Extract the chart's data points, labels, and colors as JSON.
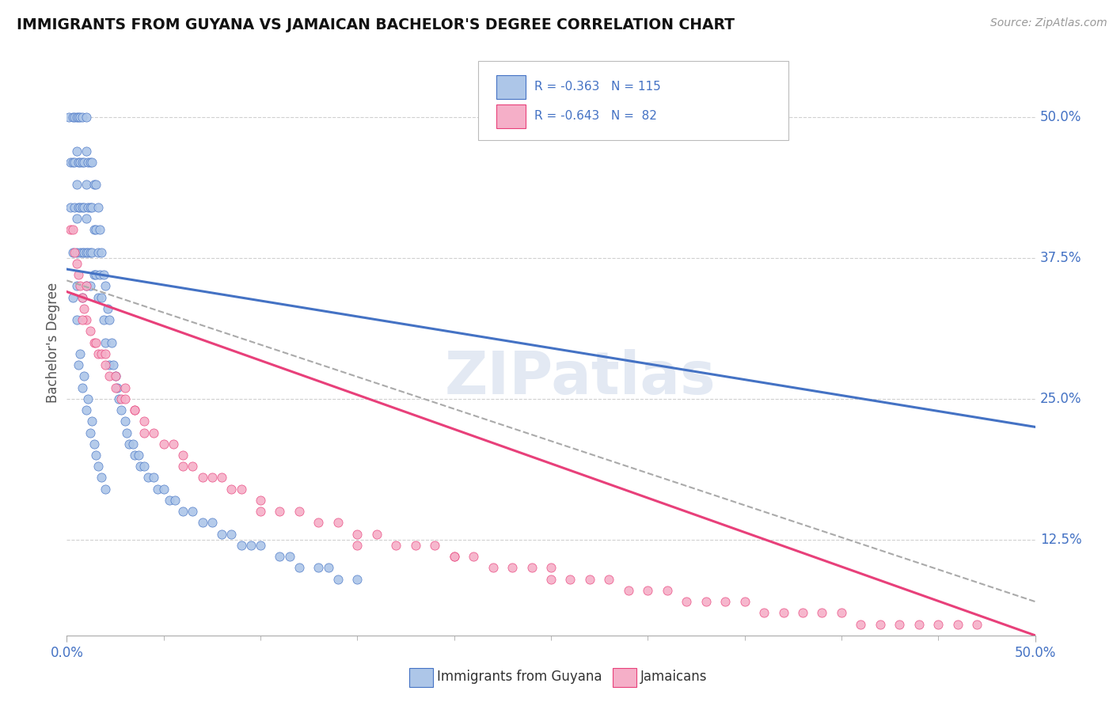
{
  "title": "IMMIGRANTS FROM GUYANA VS JAMAICAN BACHELOR'S DEGREE CORRELATION CHART",
  "source_text": "Source: ZipAtlas.com",
  "ylabel": "Bachelor's Degree",
  "ytick_labels": [
    "50.0%",
    "37.5%",
    "25.0%",
    "12.5%"
  ],
  "ytick_values": [
    0.5,
    0.375,
    0.25,
    0.125
  ],
  "color_blue": "#adc6e8",
  "color_pink": "#f5afc8",
  "line_color_blue": "#4472c4",
  "line_color_pink": "#e8407a",
  "line_color_dashed": "#aaaaaa",
  "watermark": "ZIPatlas",
  "xlim": [
    0.0,
    0.5
  ],
  "ylim": [
    0.04,
    0.56
  ],
  "guyana_line_x0": 0.0,
  "guyana_line_y0": 0.365,
  "guyana_line_x1": 0.5,
  "guyana_line_y1": 0.225,
  "jamaica_line_x0": 0.0,
  "jamaica_line_y0": 0.345,
  "jamaica_line_x1": 0.5,
  "jamaica_line_y1": 0.04,
  "dashed_line_x0": 0.0,
  "dashed_line_y0": 0.355,
  "dashed_line_x1": 0.5,
  "dashed_line_y1": 0.07,
  "guyana_x": [
    0.001,
    0.002,
    0.002,
    0.003,
    0.003,
    0.003,
    0.004,
    0.004,
    0.004,
    0.005,
    0.005,
    0.005,
    0.005,
    0.005,
    0.005,
    0.006,
    0.006,
    0.006,
    0.007,
    0.007,
    0.007,
    0.007,
    0.008,
    0.008,
    0.008,
    0.008,
    0.008,
    0.009,
    0.009,
    0.009,
    0.01,
    0.01,
    0.01,
    0.01,
    0.01,
    0.01,
    0.011,
    0.011,
    0.011,
    0.012,
    0.012,
    0.012,
    0.012,
    0.013,
    0.013,
    0.013,
    0.014,
    0.014,
    0.014,
    0.015,
    0.015,
    0.015,
    0.016,
    0.016,
    0.016,
    0.017,
    0.017,
    0.018,
    0.018,
    0.019,
    0.019,
    0.02,
    0.02,
    0.021,
    0.022,
    0.022,
    0.023,
    0.024,
    0.025,
    0.026,
    0.027,
    0.028,
    0.03,
    0.031,
    0.032,
    0.034,
    0.035,
    0.037,
    0.038,
    0.04,
    0.042,
    0.045,
    0.047,
    0.05,
    0.053,
    0.056,
    0.06,
    0.065,
    0.07,
    0.075,
    0.08,
    0.085,
    0.09,
    0.095,
    0.1,
    0.11,
    0.115,
    0.12,
    0.13,
    0.135,
    0.14,
    0.15,
    0.003,
    0.006,
    0.01,
    0.012,
    0.015,
    0.008,
    0.005,
    0.007,
    0.009,
    0.011,
    0.013,
    0.018,
    0.014,
    0.016,
    0.02
  ],
  "guyana_y": [
    0.5,
    0.46,
    0.42,
    0.5,
    0.46,
    0.38,
    0.5,
    0.46,
    0.42,
    0.5,
    0.47,
    0.44,
    0.41,
    0.38,
    0.35,
    0.5,
    0.46,
    0.42,
    0.5,
    0.46,
    0.42,
    0.38,
    0.5,
    0.46,
    0.42,
    0.38,
    0.34,
    0.46,
    0.42,
    0.38,
    0.5,
    0.47,
    0.44,
    0.41,
    0.38,
    0.35,
    0.46,
    0.42,
    0.38,
    0.46,
    0.42,
    0.38,
    0.35,
    0.46,
    0.42,
    0.38,
    0.44,
    0.4,
    0.36,
    0.44,
    0.4,
    0.36,
    0.42,
    0.38,
    0.34,
    0.4,
    0.36,
    0.38,
    0.34,
    0.36,
    0.32,
    0.35,
    0.3,
    0.33,
    0.32,
    0.28,
    0.3,
    0.28,
    0.27,
    0.26,
    0.25,
    0.24,
    0.23,
    0.22,
    0.21,
    0.21,
    0.2,
    0.2,
    0.19,
    0.19,
    0.18,
    0.18,
    0.17,
    0.17,
    0.16,
    0.16,
    0.15,
    0.15,
    0.14,
    0.14,
    0.13,
    0.13,
    0.12,
    0.12,
    0.12,
    0.11,
    0.11,
    0.1,
    0.1,
    0.1,
    0.09,
    0.09,
    0.34,
    0.28,
    0.24,
    0.22,
    0.2,
    0.26,
    0.32,
    0.29,
    0.27,
    0.25,
    0.23,
    0.18,
    0.21,
    0.19,
    0.17
  ],
  "jamaica_x": [
    0.002,
    0.003,
    0.004,
    0.005,
    0.006,
    0.007,
    0.008,
    0.009,
    0.01,
    0.012,
    0.014,
    0.016,
    0.018,
    0.02,
    0.022,
    0.025,
    0.028,
    0.03,
    0.035,
    0.04,
    0.045,
    0.05,
    0.055,
    0.06,
    0.065,
    0.07,
    0.075,
    0.08,
    0.085,
    0.09,
    0.1,
    0.11,
    0.12,
    0.13,
    0.14,
    0.15,
    0.16,
    0.17,
    0.18,
    0.19,
    0.2,
    0.21,
    0.22,
    0.23,
    0.24,
    0.25,
    0.26,
    0.27,
    0.28,
    0.29,
    0.3,
    0.31,
    0.32,
    0.33,
    0.34,
    0.35,
    0.36,
    0.37,
    0.38,
    0.39,
    0.4,
    0.41,
    0.42,
    0.43,
    0.44,
    0.45,
    0.46,
    0.47,
    0.01,
    0.02,
    0.03,
    0.04,
    0.008,
    0.015,
    0.025,
    0.035,
    0.06,
    0.1,
    0.15,
    0.2,
    0.25
  ],
  "jamaica_y": [
    0.4,
    0.4,
    0.38,
    0.37,
    0.36,
    0.35,
    0.34,
    0.33,
    0.32,
    0.31,
    0.3,
    0.29,
    0.29,
    0.28,
    0.27,
    0.26,
    0.25,
    0.25,
    0.24,
    0.23,
    0.22,
    0.21,
    0.21,
    0.2,
    0.19,
    0.18,
    0.18,
    0.18,
    0.17,
    0.17,
    0.16,
    0.15,
    0.15,
    0.14,
    0.14,
    0.13,
    0.13,
    0.12,
    0.12,
    0.12,
    0.11,
    0.11,
    0.1,
    0.1,
    0.1,
    0.1,
    0.09,
    0.09,
    0.09,
    0.08,
    0.08,
    0.08,
    0.07,
    0.07,
    0.07,
    0.07,
    0.06,
    0.06,
    0.06,
    0.06,
    0.06,
    0.05,
    0.05,
    0.05,
    0.05,
    0.05,
    0.05,
    0.05,
    0.35,
    0.29,
    0.26,
    0.22,
    0.32,
    0.3,
    0.27,
    0.24,
    0.19,
    0.15,
    0.12,
    0.11,
    0.09
  ]
}
